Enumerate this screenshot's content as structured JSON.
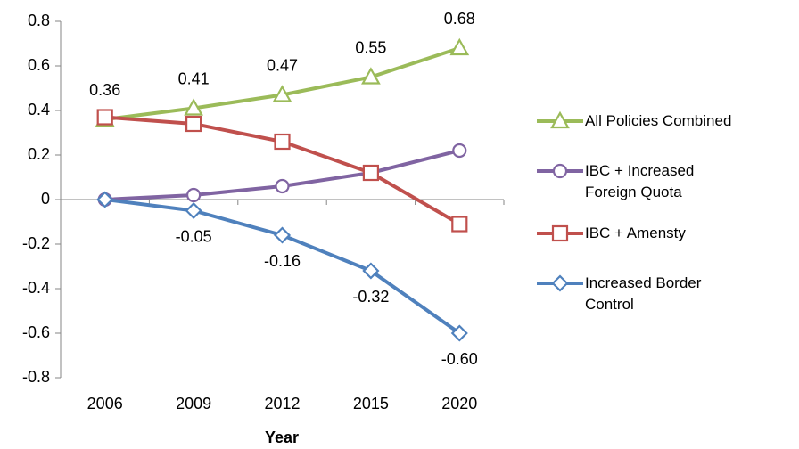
{
  "chart_data": {
    "type": "line",
    "x_label": "Year",
    "categories": [
      "2006",
      "2009",
      "2012",
      "2015",
      "2020"
    ],
    "ylim": [
      -0.8,
      0.8
    ],
    "yticks": [
      -0.8,
      -0.6,
      -0.4,
      -0.2,
      0,
      0.2,
      0.4,
      0.6,
      0.8
    ],
    "legend": "right",
    "series": [
      {
        "name": "All Policies Combined",
        "color": "#9bbb59",
        "marker": "triangle",
        "labels": "above",
        "values": [
          0.36,
          0.41,
          0.47,
          0.55,
          0.68
        ]
      },
      {
        "name": "IBC + Increased Foreign Quota",
        "color": "#8064a2",
        "marker": "circle",
        "values": [
          0,
          0.02,
          0.06,
          0.12,
          0.22
        ]
      },
      {
        "name": "IBC + Amensty",
        "color": "#c0504d",
        "marker": "square",
        "values": [
          0.37,
          0.34,
          0.26,
          0.12,
          -0.11
        ]
      },
      {
        "name": "Increased Border Control",
        "color": "#4f81bd",
        "marker": "diamond",
        "labels": "below",
        "values": [
          0,
          -0.05,
          -0.16,
          -0.32,
          -0.6
        ],
        "value_labels": [
          "0",
          "-0.05",
          "-0.16",
          "-0.32",
          "-0.60"
        ]
      }
    ]
  }
}
